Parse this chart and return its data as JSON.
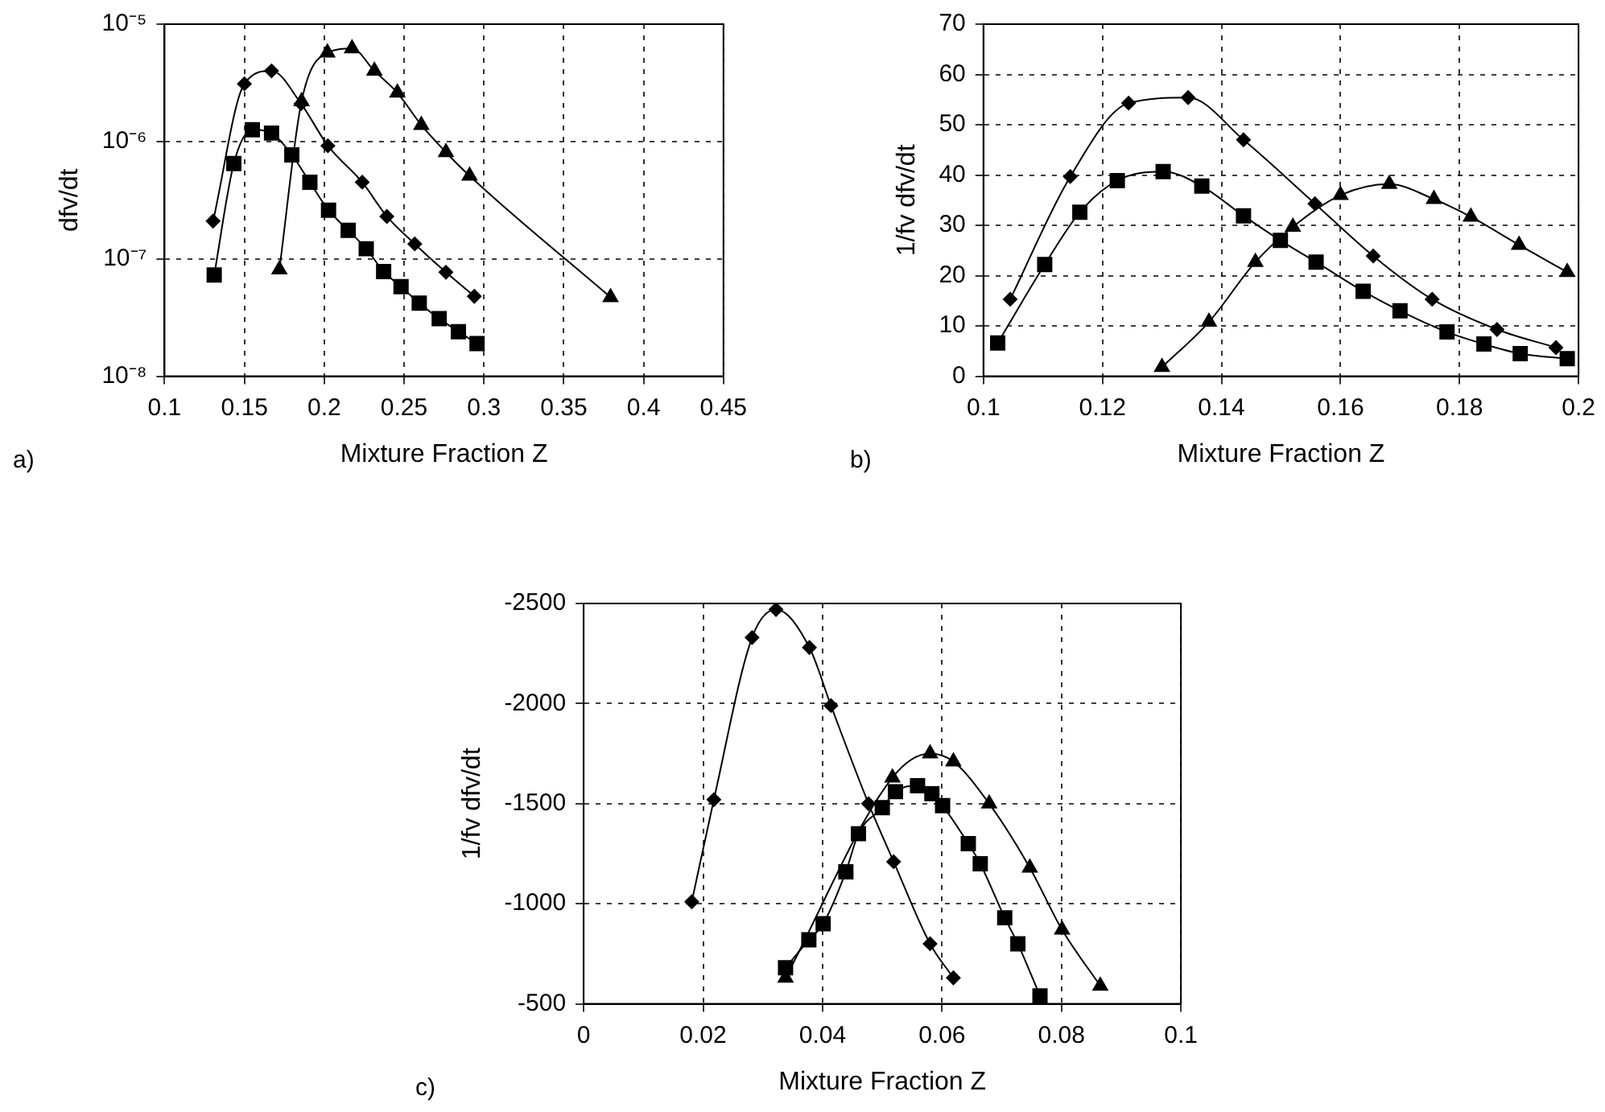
{
  "chart_data": [
    {
      "type": "line",
      "xlabel": "Mixture Fraction Z",
      "ylabel": "dfv/dt",
      "annotations": [
        "a)"
      ],
      "xlim": [
        0.1,
        0.45
      ],
      "xticks": [
        0.1,
        0.15,
        0.2,
        0.25,
        0.3,
        0.35,
        0.4,
        0.45
      ],
      "ylim": [
        1e-08,
        1e-05
      ],
      "yticks": [
        {
          "value": 1e-08,
          "label": "10⁻⁸"
        },
        {
          "value": 1e-07,
          "label": "10⁻⁷"
        },
        {
          "value": 1e-06,
          "label": "10⁻⁶"
        },
        {
          "value": 1e-05,
          "label": "10⁻⁵"
        }
      ],
      "log": "y",
      "grid": true,
      "legend": false,
      "series": [
        {
          "color": "#000000",
          "marker": "diamond",
          "x": [
            0.1304,
            0.15,
            0.167,
            0.1855,
            0.2023,
            0.2238,
            0.2392,
            0.2567,
            0.2762,
            0.294
          ],
          "values": [
            2.1e-07,
            3.1e-06,
            4e-06,
            2.1e-06,
            9.2e-07,
            4.5e-07,
            2.3e-07,
            1.34e-07,
            7.7e-08,
            4.8e-08
          ]
        },
        {
          "color": "#000000",
          "marker": "square",
          "x": [
            0.1311,
            0.1434,
            0.155,
            0.167,
            0.1797,
            0.191,
            0.2027,
            0.215,
            0.2263,
            0.2372,
            0.2481,
            0.2595,
            0.272,
            0.284,
            0.2957
          ],
          "values": [
            7.3e-08,
            6.5e-07,
            1.26e-06,
            1.18e-06,
            7.7e-07,
            4.5e-07,
            2.6e-07,
            1.75e-07,
            1.22e-07,
            7.8e-08,
            5.8e-08,
            4.2e-08,
            3.1e-08,
            2.4e-08,
            1.9e-08
          ]
        },
        {
          "color": "#000000",
          "marker": "triangle",
          "x": [
            0.1719,
            0.1858,
            0.202,
            0.2174,
            0.2314,
            0.2458,
            0.2608,
            0.2762,
            0.291,
            0.3793
          ],
          "values": [
            8.1e-08,
            2.2e-06,
            5.7e-06,
            6.2e-06,
            4e-06,
            2.6e-06,
            1.38e-06,
            8.1e-07,
            5.1e-07,
            4.7e-08
          ]
        }
      ]
    },
    {
      "type": "line",
      "xlabel": "Mixture Fraction Z",
      "ylabel": "1/fv dfv/dt",
      "annotations": [
        "b)"
      ],
      "xlim": [
        0.1,
        0.2
      ],
      "xticks": [
        0.1,
        0.12,
        0.14,
        0.16,
        0.18,
        0.2
      ],
      "ylim": [
        0,
        70
      ],
      "yticks": [
        0,
        10,
        20,
        30,
        40,
        50,
        60,
        70
      ],
      "grid": true,
      "legend": false,
      "series": [
        {
          "color": "#000000",
          "marker": "diamond",
          "x": [
            0.1045,
            0.1146,
            0.1244,
            0.1344,
            0.1437,
            0.1557,
            0.1655,
            0.1754,
            0.1863,
            0.1962
          ],
          "values": [
            15.3,
            39.7,
            54.3,
            55.4,
            47.0,
            34.3,
            23.9,
            15.3,
            9.3,
            5.7
          ]
        },
        {
          "color": "#000000",
          "marker": "square",
          "x": [
            0.1024,
            0.1103,
            0.1162,
            0.1225,
            0.1302,
            0.1367,
            0.1437,
            0.1499,
            0.1559,
            0.1638,
            0.17,
            0.1779,
            0.1841,
            0.1902,
            0.1981
          ],
          "values": [
            6.6,
            22.2,
            32.6,
            38.9,
            40.7,
            37.8,
            31.9,
            27.0,
            22.7,
            16.9,
            13.0,
            8.8,
            6.4,
            4.5,
            3.5
          ]
        },
        {
          "color": "#000000",
          "marker": "triangle",
          "x": [
            0.13,
            0.1379,
            0.1457,
            0.152,
            0.16,
            0.1682,
            0.1757,
            0.1819,
            0.19,
            0.1981
          ],
          "values": [
            1.8,
            10.8,
            22.7,
            29.7,
            36.0,
            38.2,
            35.2,
            31.7,
            26.1,
            20.7
          ]
        }
      ]
    },
    {
      "type": "line",
      "xlabel": "Mixture Fraction Z",
      "ylabel": "1/fv dfv/dt",
      "annotations": [
        "c)"
      ],
      "xlim": [
        0,
        0.1
      ],
      "xticks": [
        0,
        0.02,
        0.04,
        0.06,
        0.08,
        0.1
      ],
      "ylim": [
        -500,
        -2500
      ],
      "yticks": [
        -500,
        -1000,
        -1500,
        -2000,
        -2500
      ],
      "grid": true,
      "legend": false,
      "series": [
        {
          "color": "#000000",
          "marker": "diamond",
          "x": [
            0.0181,
            0.0218,
            0.0282,
            0.0322,
            0.0378,
            0.0414,
            0.0477,
            0.0519,
            0.058,
            0.0619
          ],
          "values": [
            -1010,
            -1520,
            -2330,
            -2470,
            -2280,
            -1990,
            -1500,
            -1210,
            -800,
            -630
          ]
        },
        {
          "color": "#000000",
          "marker": "square",
          "x": [
            0.0338,
            0.0377,
            0.0401,
            0.0439,
            0.046,
            0.05,
            0.0522,
            0.0559,
            0.0583,
            0.0601,
            0.0644,
            0.0664,
            0.0705,
            0.0727,
            0.0764
          ],
          "values": [
            -680,
            -820,
            -900,
            -1160,
            -1350,
            -1480,
            -1560,
            -1590,
            -1550,
            -1490,
            -1300,
            -1200,
            -930,
            -800,
            -540
          ]
        },
        {
          "color": "#000000",
          "marker": "triangle",
          "x": [
            0.0338,
            0.0517,
            0.058,
            0.0619,
            0.0679,
            0.0747,
            0.0801,
            0.0865
          ],
          "values": [
            -630,
            -1630,
            -1750,
            -1710,
            -1500,
            -1180,
            -870,
            -590
          ]
        }
      ]
    }
  ]
}
